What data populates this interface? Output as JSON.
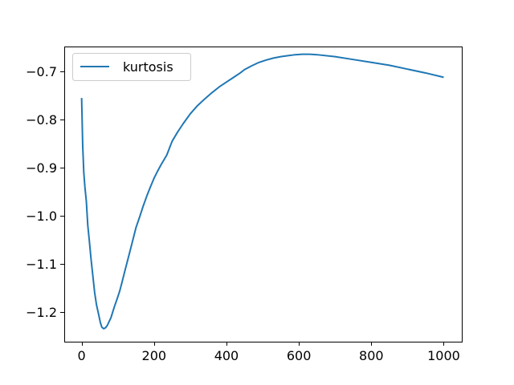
{
  "chart_data": {
    "type": "line",
    "title": "",
    "xlabel": "",
    "ylabel": "",
    "xlim": [
      -48,
      1050
    ],
    "ylim": [
      -1.262,
      -0.648
    ],
    "xticks": [
      0,
      200,
      400,
      600,
      800,
      1000
    ],
    "xtick_labels": [
      "0",
      "200",
      "400",
      "600",
      "800",
      "1000"
    ],
    "yticks": [
      -1.2,
      -1.1,
      -1.0,
      -0.9,
      -0.8,
      -0.7
    ],
    "ytick_labels": [
      "−1.2",
      "−1.1",
      "−1.0",
      "−0.9",
      "−0.8",
      "−0.7"
    ],
    "grid": false,
    "legend": {
      "location": "upper-left",
      "entries": [
        "kurtosis"
      ]
    },
    "series": [
      {
        "name": "kurtosis",
        "color": "#1f77b4",
        "x": [
          0,
          3,
          6,
          9,
          13,
          17,
          21,
          26,
          31,
          36,
          41,
          46,
          52,
          56,
          61,
          66,
          71,
          76,
          81,
          86,
          91,
          98,
          105,
          112,
          120,
          130,
          140,
          150,
          160,
          170,
          180,
          190,
          200,
          210,
          220,
          235,
          250,
          265,
          280,
          300,
          320,
          340,
          360,
          380,
          400,
          420,
          438,
          450,
          470,
          490,
          510,
          530,
          550,
          570,
          590,
          610,
          630,
          650,
          700,
          750,
          800,
          850,
          900,
          950,
          1000
        ],
        "y": [
          -0.755,
          -0.855,
          -0.91,
          -0.94,
          -0.97,
          -1.02,
          -1.05,
          -1.09,
          -1.125,
          -1.16,
          -1.185,
          -1.202,
          -1.223,
          -1.232,
          -1.235,
          -1.233,
          -1.228,
          -1.22,
          -1.212,
          -1.2,
          -1.188,
          -1.173,
          -1.157,
          -1.137,
          -1.113,
          -1.084,
          -1.055,
          -1.025,
          -1.003,
          -0.98,
          -0.959,
          -0.94,
          -0.922,
          -0.907,
          -0.893,
          -0.874,
          -0.845,
          -0.826,
          -0.809,
          -0.788,
          -0.771,
          -0.757,
          -0.744,
          -0.732,
          -0.722,
          -0.712,
          -0.703,
          -0.696,
          -0.688,
          -0.681,
          -0.676,
          -0.672,
          -0.669,
          -0.667,
          -0.665,
          -0.664,
          -0.664,
          -0.665,
          -0.669,
          -0.675,
          -0.681,
          -0.687,
          -0.695,
          -0.703,
          -0.712
        ]
      }
    ]
  }
}
